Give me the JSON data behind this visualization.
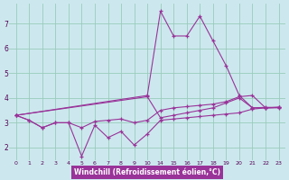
{
  "xlabel": "Windchill (Refroidissement éolien,°C)",
  "bg_color": "#cce8ee",
  "grid_color": "#99ccbb",
  "line_color": "#993399",
  "ylim": [
    1.5,
    7.8
  ],
  "yticks": [
    2,
    3,
    4,
    5,
    6,
    7
  ],
  "xtick_labels": [
    "0",
    "1",
    "2",
    "3",
    "4",
    "5",
    "6",
    "7",
    "8",
    "9",
    "10",
    "14",
    "15",
    "16",
    "17",
    "18",
    "19",
    "20",
    "21",
    "22",
    "23"
  ],
  "series": [
    {
      "xi": [
        0,
        1,
        2,
        3,
        4,
        5,
        6,
        7,
        8,
        9,
        10,
        11,
        12,
        13,
        14,
        15,
        16,
        17,
        18,
        19,
        20
      ],
      "y": [
        3.3,
        3.1,
        2.8,
        3.0,
        3.0,
        1.65,
        2.9,
        2.4,
        2.65,
        2.1,
        2.55,
        3.1,
        3.15,
        3.2,
        3.25,
        3.3,
        3.35,
        3.4,
        3.55,
        3.6,
        3.62
      ]
    },
    {
      "xi": [
        0,
        1,
        2,
        3,
        4,
        5,
        6,
        7,
        8,
        9,
        10,
        11,
        12,
        13,
        14,
        15,
        16,
        17,
        18,
        19,
        20
      ],
      "y": [
        3.3,
        3.1,
        2.8,
        3.0,
        3.0,
        2.8,
        3.05,
        3.1,
        3.15,
        3.0,
        3.1,
        3.5,
        3.6,
        3.65,
        3.7,
        3.75,
        3.85,
        4.05,
        4.1,
        3.6,
        3.62
      ]
    },
    {
      "xi": [
        0,
        10,
        11,
        12,
        13,
        14,
        15,
        16,
        17,
        18,
        19,
        20
      ],
      "y": [
        3.3,
        4.1,
        7.5,
        6.5,
        6.5,
        7.3,
        6.3,
        5.3,
        4.1,
        3.6,
        3.6,
        3.6
      ]
    },
    {
      "xi": [
        0,
        10,
        11,
        12,
        13,
        14,
        15,
        16,
        17,
        18,
        19,
        20
      ],
      "y": [
        3.3,
        4.05,
        3.2,
        3.3,
        3.4,
        3.5,
        3.6,
        3.8,
        4.0,
        3.6,
        3.62,
        3.62
      ]
    }
  ]
}
